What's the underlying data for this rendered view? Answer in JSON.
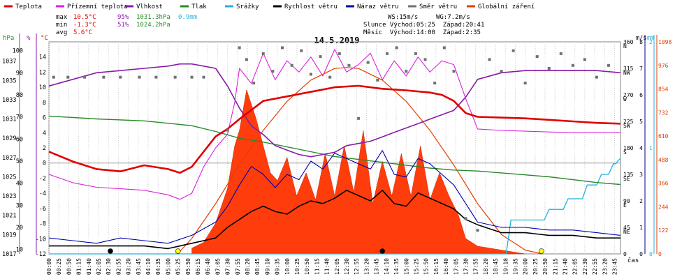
{
  "legend": [
    {
      "label": "Teplota",
      "color": "#e00000"
    },
    {
      "label": "Přízemní teplota",
      "color": "#dd22dd"
    },
    {
      "label": "Vlhkost",
      "color": "#8a1aa8"
    },
    {
      "label": "Tlak",
      "color": "#2a8a2a"
    },
    {
      "label": "Srážky",
      "color": "#22b0e0"
    },
    {
      "label": "Rychlost větru",
      "color": "#000000"
    },
    {
      "label": "Náraz větru",
      "color": "#0000aa"
    },
    {
      "label": "Směr větru",
      "color": "#707070"
    },
    {
      "label": "Globální záření",
      "color": "#e04000"
    }
  ],
  "stats": {
    "max_label": "max",
    "max_temp": "10.5°C",
    "max_hum": "95%",
    "max_press": "1031.3hPa",
    "max_rain": "0.9mm",
    "min_label": "min",
    "min_temp": "-1.3°C",
    "min_hum": "51%",
    "min_press": "1024.2hPa",
    "avg_label": "avg",
    "avg_temp": "5.6°C"
  },
  "info": {
    "ws": "WS:15m/s",
    "wg": "WG:7.2m/s",
    "sun": "Slunce Východ:05:25  Západ:20:41",
    "moon": "Měsíc  Východ:14:00  Západ:2:35"
  },
  "chart_data": {
    "type": "line",
    "title": "14.5.2019",
    "xlabel": "čas",
    "x_ticks": [
      "00:00",
      "00:25",
      "00:50",
      "01:15",
      "01:40",
      "02:05",
      "02:30",
      "02:55",
      "03:20",
      "03:45",
      "04:10",
      "04:35",
      "05:00",
      "05:25",
      "05:50",
      "06:15",
      "06:40",
      "07:05",
      "07:30",
      "07:55",
      "08:20",
      "08:45",
      "09:10",
      "09:35",
      "10:00",
      "10:25",
      "10:50",
      "11:15",
      "11:40",
      "12:05",
      "12:30",
      "12:55",
      "13:20",
      "13:45",
      "14:10",
      "14:35",
      "15:00",
      "15:25",
      "15:50",
      "16:15",
      "16:40",
      "17:05",
      "17:30",
      "17:55",
      "18:20",
      "18:45",
      "19:10",
      "19:35",
      "20:00",
      "20:25",
      "20:50",
      "21:15",
      "21:40",
      "22:05",
      "22:30",
      "22:55",
      "23:20",
      "23:45"
    ],
    "axes": {
      "pressure": {
        "unit": "hPa",
        "ticks": [
          "1037",
          "1035",
          "1033",
          "1031",
          "1029",
          "1027",
          "1025",
          "1023",
          "1021",
          "1019",
          "1017"
        ],
        "range": [
          1017,
          1039
        ]
      },
      "humidity": {
        "unit": "%",
        "ticks": [
          "100",
          "90",
          "80",
          "70",
          "60",
          "50",
          "40",
          "30",
          "20",
          "10"
        ],
        "range": [
          8,
          104
        ]
      },
      "temperature": {
        "unit": "°C",
        "ticks": [
          "14",
          "12",
          "10",
          "8",
          "6",
          "4",
          "2",
          "0",
          "-2",
          "-4",
          "-6",
          "-8",
          "-10",
          "-12"
        ],
        "range": [
          -12,
          16
        ]
      },
      "wind": {
        "unit": "m/s",
        "ticks": [
          "8",
          "7",
          "6",
          "5",
          "4",
          "3",
          "2",
          "1",
          "0"
        ],
        "range": [
          0,
          8
        ]
      },
      "direction": {
        "ticks": [
          "360",
          "N",
          "315",
          "NW",
          "270",
          "W",
          "225",
          "SW",
          "180",
          "S",
          "135",
          "SE",
          "90",
          "E",
          "45",
          "NE",
          "0"
        ]
      },
      "rain": {
        "unit": "mm",
        "ticks": [
          "2",
          "1",
          "0"
        ],
        "range": [
          0,
          2
        ]
      },
      "radiation": {
        "ticks": [
          "1098",
          "976",
          "854",
          "732",
          "610",
          "488",
          "366",
          "244",
          "122",
          "0"
        ],
        "range": [
          0,
          1098
        ]
      }
    },
    "series": [
      {
        "name": "Teplota",
        "axis": "temperature",
        "x": [
          0,
          1,
          2,
          3,
          4,
          5,
          5.5,
          6,
          6.5,
          7,
          7.5,
          8,
          9,
          10,
          11,
          12,
          13,
          14,
          15,
          16,
          16.5,
          17,
          17.5,
          18,
          19,
          20,
          21,
          22,
          23,
          24
        ],
        "values": [
          1.5,
          0.2,
          -0.8,
          -1.1,
          -0.3,
          -0.8,
          -1.3,
          -0.5,
          1.5,
          3.5,
          4.5,
          5.8,
          8.2,
          8.8,
          9.4,
          10.0,
          10.2,
          9.8,
          9.6,
          9.3,
          9.0,
          8.2,
          6.6,
          6.1,
          6.0,
          5.9,
          5.7,
          5.5,
          5.3,
          5.2
        ]
      },
      {
        "name": "Přízemní teplota",
        "axis": "temperature",
        "x": [
          0,
          1,
          2,
          3,
          4,
          5,
          5.5,
          6,
          6.5,
          7,
          7.5,
          7.8,
          8,
          8.5,
          9,
          9.5,
          10,
          10.5,
          11,
          11.5,
          12,
          12.5,
          13,
          13.5,
          14,
          14.5,
          15,
          15.5,
          16,
          16.5,
          17,
          17.5,
          18,
          19,
          20,
          21,
          22,
          23,
          24
        ],
        "values": [
          -1.5,
          -2.6,
          -3.2,
          -3.4,
          -3.6,
          -4.2,
          -4.8,
          -4.0,
          -0.5,
          2.0,
          3.8,
          8.0,
          12.5,
          10.5,
          14.5,
          11.0,
          13.5,
          12.0,
          14.0,
          11.5,
          15.0,
          12.0,
          13.0,
          14.5,
          11.0,
          13.5,
          11.5,
          14.0,
          12.0,
          13.5,
          13.0,
          8.5,
          4.5,
          4.3,
          4.2,
          4.1,
          4.0,
          4.0,
          4.0
        ]
      },
      {
        "name": "Vlhkost",
        "axis": "humidity",
        "x": [
          0,
          1,
          2,
          3,
          4,
          5,
          5.5,
          6,
          6.5,
          7,
          7.5,
          8,
          8.5,
          9,
          9.5,
          10,
          10.5,
          11,
          11.5,
          12,
          12.5,
          13,
          13.5,
          14,
          14.5,
          15,
          15.5,
          16,
          16.5,
          17,
          17.5,
          18,
          19,
          20,
          21,
          22,
          23,
          24
        ],
        "values": [
          84,
          87,
          90,
          91,
          92,
          93,
          94,
          94,
          93,
          92,
          84,
          74,
          66,
          62,
          57,
          55,
          53,
          52,
          53,
          54,
          57,
          58,
          59,
          61,
          63,
          65,
          67,
          69,
          71,
          73,
          79,
          87,
          90,
          91,
          91,
          91,
          91,
          90
        ]
      },
      {
        "name": "Tlak",
        "axis": "pressure",
        "x": [
          0,
          2,
          4,
          6,
          7,
          8,
          9,
          10,
          11,
          12,
          13,
          14,
          15,
          16,
          17,
          18,
          19,
          20,
          21,
          22,
          23,
          24
        ],
        "values": [
          1031.3,
          1031.0,
          1030.8,
          1030.3,
          1029.7,
          1029.0,
          1028.6,
          1028.1,
          1027.6,
          1027.1,
          1026.8,
          1026.5,
          1026.2,
          1025.9,
          1025.7,
          1025.6,
          1025.4,
          1025.2,
          1025.0,
          1024.7,
          1024.4,
          1024.2
        ]
      },
      {
        "name": "Srážky",
        "axis": "rain",
        "x": [
          0,
          19.2,
          19.4,
          20.8,
          21.0,
          21.6,
          21.8,
          22.4,
          22.6,
          23.0,
          23.2,
          23.5,
          23.7,
          23.8,
          23.9,
          24
        ],
        "values": [
          0,
          0,
          0.32,
          0.32,
          0.42,
          0.42,
          0.52,
          0.52,
          0.65,
          0.65,
          0.75,
          0.75,
          0.85,
          0.85,
          0.88,
          0.9
        ]
      },
      {
        "name": "Rychlost větru",
        "axis": "wind",
        "x": [
          0,
          1,
          2,
          3,
          4,
          5,
          6,
          7,
          7.5,
          8,
          8.5,
          9,
          9.5,
          10,
          10.5,
          11,
          11.5,
          12,
          12.5,
          13,
          13.5,
          14,
          14.5,
          15,
          15.5,
          16,
          16.5,
          17,
          17.5,
          18,
          19,
          20,
          21,
          22,
          23,
          24
        ],
        "values": [
          0.3,
          0.3,
          0.3,
          0.3,
          0.3,
          0.2,
          0.4,
          0.6,
          1.0,
          1.3,
          1.6,
          1.8,
          1.6,
          1.5,
          1.8,
          2.0,
          1.9,
          2.1,
          2.4,
          2.2,
          2.0,
          2.4,
          1.9,
          1.8,
          2.3,
          2.1,
          1.9,
          1.7,
          1.3,
          1.1,
          0.8,
          0.8,
          0.7,
          0.7,
          0.6,
          0.6
        ]
      },
      {
        "name": "Náraz větru",
        "axis": "wind",
        "x": [
          0,
          1,
          2,
          3,
          4,
          5,
          6,
          7,
          7.5,
          8,
          8.5,
          9,
          9.5,
          10,
          10.5,
          11,
          11.5,
          12,
          12.5,
          13,
          13.5,
          14,
          14.5,
          15,
          15.5,
          16,
          16.5,
          17,
          17.5,
          18,
          19,
          20,
          21,
          22,
          23,
          24
        ],
        "values": [
          0.6,
          0.5,
          0.4,
          0.6,
          0.5,
          0.4,
          0.7,
          1.2,
          1.8,
          2.6,
          3.3,
          3.0,
          2.5,
          3.0,
          2.8,
          3.5,
          3.2,
          3.8,
          3.6,
          3.4,
          3.2,
          3.9,
          3.0,
          2.9,
          3.6,
          3.4,
          3.0,
          2.6,
          1.9,
          1.2,
          1.0,
          1.0,
          0.9,
          0.9,
          0.8,
          0.7
        ]
      },
      {
        "name": "Globální záření",
        "axis": "radiation",
        "x": [
          5.4,
          6,
          7,
          8,
          9,
          10,
          11,
          12,
          12.5,
          13,
          14,
          15,
          16,
          17,
          18,
          19,
          20,
          20.7
        ],
        "values": [
          0,
          80,
          260,
          460,
          640,
          790,
          900,
          960,
          965,
          960,
          900,
          790,
          640,
          460,
          260,
          100,
          20,
          0
        ]
      }
    ],
    "radiation_measured": {
      "axis": "radiation",
      "x": [
        6,
        6.5,
        7,
        7.5,
        7.8,
        8,
        8.3,
        8.7,
        9,
        9.3,
        9.6,
        10,
        10.4,
        10.8,
        11.2,
        11.6,
        12,
        12.4,
        12.8,
        13.2,
        13.6,
        14,
        14.4,
        14.8,
        15.2,
        15.6,
        16,
        16.4,
        16.8,
        17.2,
        17.5,
        18,
        18.5,
        19,
        19.5,
        20
      ],
      "values": [
        30,
        60,
        160,
        340,
        560,
        640,
        850,
        700,
        560,
        420,
        380,
        500,
        300,
        420,
        280,
        520,
        300,
        560,
        320,
        640,
        260,
        480,
        300,
        520,
        300,
        560,
        280,
        420,
        300,
        200,
        80,
        40,
        30,
        20,
        10,
        0
      ]
    },
    "wind_direction_points": {
      "axis": "direction",
      "x": [
        0.2,
        0.8,
        1.5,
        2.3,
        3.0,
        3.8,
        4.5,
        5.3,
        6.0,
        6.5,
        7.5,
        8.0,
        8.3,
        8.6,
        9.0,
        9.4,
        9.8,
        10.2,
        10.6,
        11.0,
        11.4,
        11.8,
        12.2,
        12.6,
        13.0,
        13.4,
        13.8,
        14.2,
        14.6,
        15.0,
        15.4,
        15.8,
        16.2,
        16.6,
        17.0,
        17.5,
        18.0,
        18.5,
        19.0,
        19.5,
        20.0,
        20.5,
        21.0,
        21.5,
        22.0,
        22.5,
        23.0,
        23.5
      ],
      "values": [
        300,
        300,
        300,
        300,
        300,
        300,
        300,
        300,
        300,
        300,
        210,
        350,
        330,
        290,
        340,
        310,
        350,
        320,
        345,
        305,
        335,
        300,
        340,
        320,
        230,
        325,
        295,
        340,
        350,
        310,
        340,
        330,
        290,
        350,
        310,
        60,
        40,
        330,
        310,
        345,
        290,
        335,
        315,
        340,
        320,
        330,
        300,
        320
      ]
    },
    "markers": [
      {
        "label": "moonset",
        "x": 2.58,
        "color": "#000000"
      },
      {
        "label": "sunrise",
        "x": 5.42,
        "color": "#ffff00"
      },
      {
        "label": "moonrise",
        "x": 14.0,
        "color": "#000000"
      },
      {
        "label": "sunset",
        "x": 20.68,
        "color": "#ffff00"
      }
    ]
  }
}
